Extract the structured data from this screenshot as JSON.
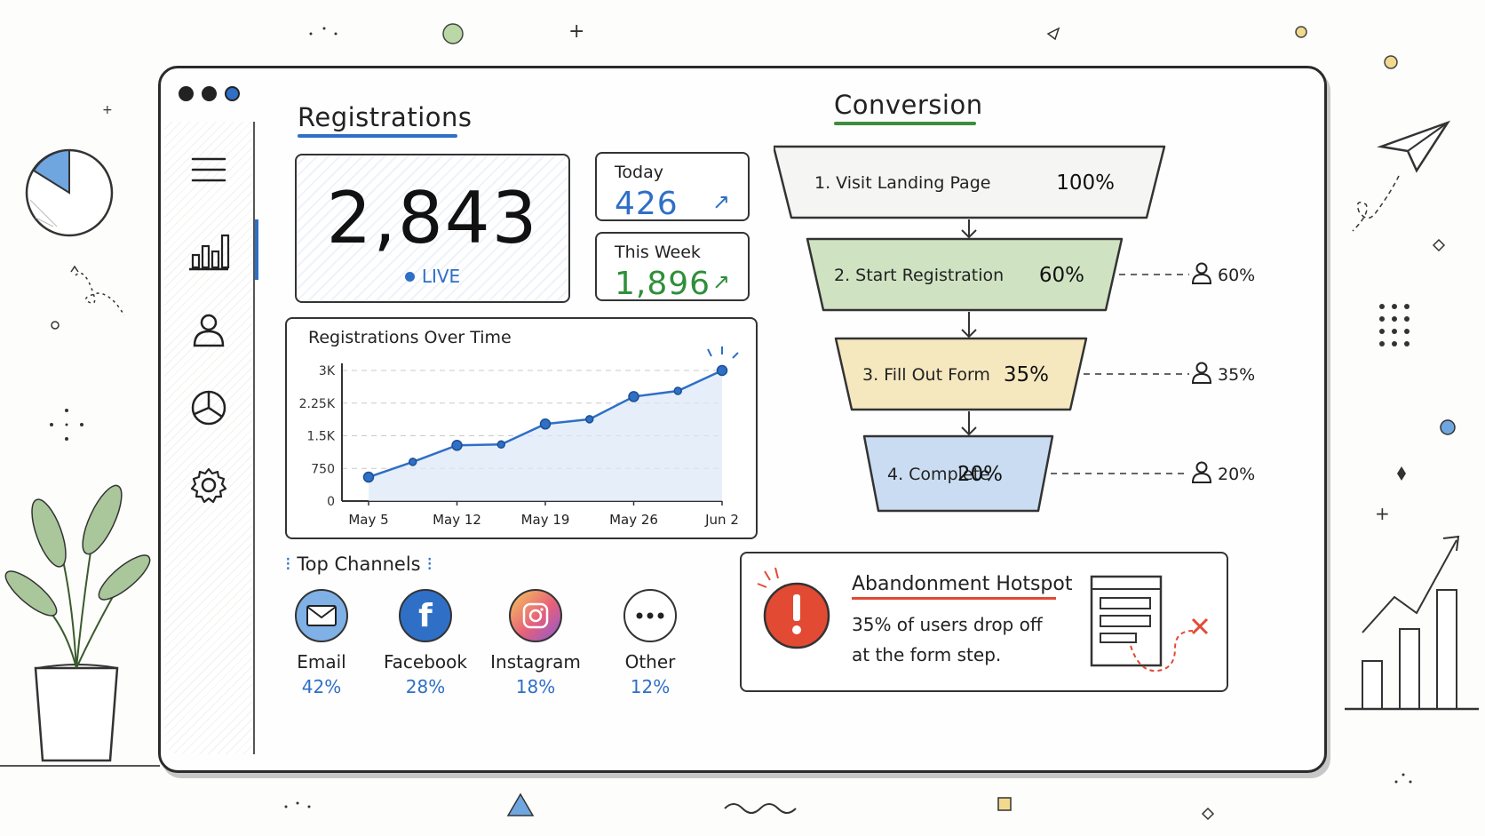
{
  "sidebar": {
    "items": [
      {
        "icon": "menu-icon"
      },
      {
        "icon": "bar-chart-icon",
        "active": true
      },
      {
        "icon": "user-icon"
      },
      {
        "icon": "pie-chart-icon"
      },
      {
        "icon": "gear-icon"
      }
    ]
  },
  "registrations": {
    "title": "Registrations",
    "total": "2,843",
    "live": "LIVE",
    "today": {
      "label": "Today",
      "value": "426",
      "arrow": "↗"
    },
    "week": {
      "label": "This Week",
      "value": "1,896",
      "arrow": "↗"
    }
  },
  "chart_data": {
    "type": "line",
    "title": "Registrations Over Time",
    "xlabel": "",
    "ylabel": "",
    "x": [
      "May 5",
      "May 9",
      "May 12",
      "May 15",
      "May 19",
      "May 22",
      "May 26",
      "May 29",
      "Jun 2"
    ],
    "values": [
      550,
      900,
      1280,
      1300,
      1770,
      1880,
      2400,
      2530,
      3000
    ],
    "xticks": [
      "May 5",
      "May 12",
      "May 19",
      "May 26",
      "Jun 2"
    ],
    "yticks": [
      "0",
      "750",
      "1.5K",
      "2.25K",
      "3K"
    ],
    "ylim": [
      0,
      3000
    ],
    "grid": true,
    "color": "#2f6fc6"
  },
  "channels": {
    "title": "Top Channels",
    "items": [
      {
        "name": "Email",
        "pct": "42%",
        "icon": "email-icon"
      },
      {
        "name": "Facebook",
        "pct": "28%",
        "icon": "facebook-icon"
      },
      {
        "name": "Instagram",
        "pct": "18%",
        "icon": "instagram-icon"
      },
      {
        "name": "Other",
        "pct": "12%",
        "icon": "more-icon"
      }
    ]
  },
  "conversion": {
    "title": "Conversion",
    "steps": [
      {
        "label": "1. Visit Landing Page",
        "pct": "100%",
        "color": "#f5f5f3"
      },
      {
        "label": "2. Start Registration",
        "pct": "60%",
        "side": "60%",
        "color": "#cfe3c2"
      },
      {
        "label": "3. Fill Out Form",
        "pct": "35%",
        "side": "35%",
        "color": "#f5e8bf"
      },
      {
        "label": "4. Complete",
        "pct": "20%",
        "side": "20%",
        "color": "#c9dcf2"
      }
    ]
  },
  "hotspot": {
    "title": "Abandonment Hotspot",
    "line1": "35% of users drop off",
    "line2": "at the form step.",
    "alert_color": "#e24a33"
  }
}
